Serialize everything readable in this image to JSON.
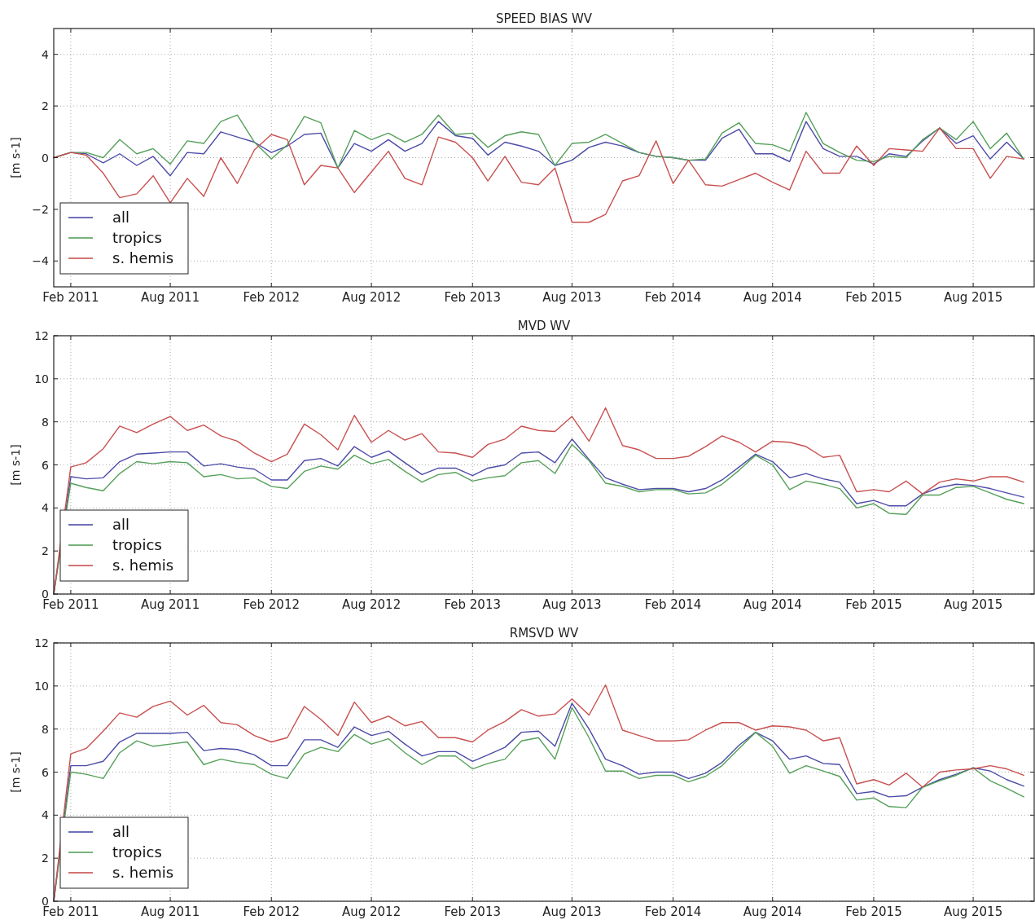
{
  "chart_data": [
    {
      "type": "line",
      "title": "SPEED BIAS WV",
      "ylabel": "[m s-1]",
      "grid": true,
      "legend": "bottom left",
      "line_style": "solid",
      "x": [
        "2011-01",
        "2011-02",
        "2011-03",
        "2011-04",
        "2011-05",
        "2011-06",
        "2011-07",
        "2011-08",
        "2011-09",
        "2011-10",
        "2011-11",
        "2011-12",
        "2012-01",
        "2012-02",
        "2012-03",
        "2012-04",
        "2012-05",
        "2012-06",
        "2012-07",
        "2012-08",
        "2012-09",
        "2012-10",
        "2012-11",
        "2012-12",
        "2013-01",
        "2013-02",
        "2013-03",
        "2013-04",
        "2013-05",
        "2013-06",
        "2013-07",
        "2013-08",
        "2013-09",
        "2013-10",
        "2013-11",
        "2013-12",
        "2014-01",
        "2014-02",
        "2014-03",
        "2014-04",
        "2014-05",
        "2014-06",
        "2014-07",
        "2014-08",
        "2014-09",
        "2014-10",
        "2014-11",
        "2014-12",
        "2015-01",
        "2015-02",
        "2015-03",
        "2015-04",
        "2015-05",
        "2015-06",
        "2015-07",
        "2015-08",
        "2015-09",
        "2015-10",
        "2015-11"
      ],
      "xlim": [
        "2011-01-01",
        "2015-11-20"
      ],
      "xticks": [
        {
          "value": "2011-02",
          "label": "Feb 2011"
        },
        {
          "value": "2011-08",
          "label": "Aug 2011"
        },
        {
          "value": "2012-02",
          "label": "Feb 2012"
        },
        {
          "value": "2012-08",
          "label": "Aug 2012"
        },
        {
          "value": "2013-02",
          "label": "Feb 2013"
        },
        {
          "value": "2013-08",
          "label": "Aug 2013"
        },
        {
          "value": "2014-02",
          "label": "Feb 2014"
        },
        {
          "value": "2014-08",
          "label": "Aug 2014"
        },
        {
          "value": "2015-02",
          "label": "Feb 2015"
        },
        {
          "value": "2015-08",
          "label": "Aug 2015"
        }
      ],
      "ylim": [
        -5,
        5
      ],
      "yticks": [
        {
          "value": -4,
          "label": "−4"
        },
        {
          "value": -2,
          "label": "−2"
        },
        0,
        2,
        4
      ],
      "series": [
        {
          "name": "all",
          "color": "#4c4ca8",
          "values": [
            0,
            0.2,
            0.15,
            -0.2,
            0.15,
            -0.3,
            0.05,
            -0.7,
            0.2,
            0.15,
            1.0,
            0.8,
            0.6,
            0.2,
            0.45,
            0.9,
            0.95,
            -0.4,
            0.55,
            0.25,
            0.7,
            0.25,
            0.55,
            1.4,
            0.85,
            0.75,
            0.1,
            0.6,
            0.45,
            0.25,
            -0.3,
            -0.1,
            0.4,
            0.6,
            0.45,
            0.2,
            0.05,
            0,
            -0.1,
            -0.1,
            0.75,
            1.1,
            0.15,
            0.15,
            -0.15,
            1.4,
            0.35,
            0.05,
            0.05,
            -0.25,
            0.15,
            0.05,
            0.65,
            1.15,
            0.55,
            0.85,
            -0.05,
            0.6,
            -0.05
          ]
        },
        {
          "name": "tropics",
          "color": "#55a05a",
          "values": [
            0,
            0.2,
            0.2,
            0,
            0.7,
            0.15,
            0.35,
            -0.25,
            0.65,
            0.55,
            1.4,
            1.65,
            0.6,
            -0.05,
            0.5,
            1.6,
            1.35,
            -0.4,
            1.05,
            0.7,
            0.95,
            0.6,
            0.9,
            1.65,
            0.9,
            0.95,
            0.4,
            0.85,
            1.0,
            0.9,
            -0.3,
            0.55,
            0.6,
            0.9,
            0.55,
            0.2,
            0.05,
            0,
            -0.1,
            -0.05,
            0.95,
            1.35,
            0.55,
            0.5,
            0.25,
            1.75,
            0.55,
            0.2,
            -0.1,
            -0.15,
            0.05,
            0,
            0.7,
            1.15,
            0.7,
            1.4,
            0.35,
            0.95,
            -0.05
          ]
        },
        {
          "name": "s. hemis",
          "color": "#c8504f",
          "values": [
            0,
            0.2,
            0.1,
            -0.6,
            -1.55,
            -1.4,
            -0.7,
            -1.75,
            -0.8,
            -1.5,
            0,
            -1.0,
            0.3,
            0.9,
            0.7,
            -1.05,
            -0.3,
            -0.4,
            -1.35,
            -0.55,
            0.25,
            -0.8,
            -1.05,
            0.8,
            0.6,
            0,
            -0.9,
            0.05,
            -0.95,
            -1.05,
            -0.4,
            -2.5,
            -2.5,
            -2.2,
            -0.9,
            -0.7,
            0.65,
            -1.0,
            -0.1,
            -1.05,
            -1.1,
            -0.85,
            -0.6,
            -0.95,
            -1.25,
            0.25,
            -0.6,
            -0.6,
            0.45,
            -0.3,
            0.35,
            0.3,
            0.25,
            1.15,
            0.35,
            0.35,
            -0.8,
            0.05,
            -0.05
          ]
        }
      ]
    },
    {
      "type": "line",
      "title": "MVD WV",
      "ylabel": "[m s-1]",
      "grid": true,
      "legend": "bottom left",
      "line_style": "solid",
      "x": [
        "2011-01",
        "2011-02",
        "2011-03",
        "2011-04",
        "2011-05",
        "2011-06",
        "2011-07",
        "2011-08",
        "2011-09",
        "2011-10",
        "2011-11",
        "2011-12",
        "2012-01",
        "2012-02",
        "2012-03",
        "2012-04",
        "2012-05",
        "2012-06",
        "2012-07",
        "2012-08",
        "2012-09",
        "2012-10",
        "2012-11",
        "2012-12",
        "2013-01",
        "2013-02",
        "2013-03",
        "2013-04",
        "2013-05",
        "2013-06",
        "2013-07",
        "2013-08",
        "2013-09",
        "2013-10",
        "2013-11",
        "2013-12",
        "2014-01",
        "2014-02",
        "2014-03",
        "2014-04",
        "2014-05",
        "2014-06",
        "2014-07",
        "2014-08",
        "2014-09",
        "2014-10",
        "2014-11",
        "2014-12",
        "2015-01",
        "2015-02",
        "2015-03",
        "2015-04",
        "2015-05",
        "2015-06",
        "2015-07",
        "2015-08",
        "2015-09",
        "2015-10",
        "2015-11"
      ],
      "xlim": [
        "2011-01-01",
        "2015-11-20"
      ],
      "xticks": [
        {
          "value": "2011-02",
          "label": "Feb 2011"
        },
        {
          "value": "2011-08",
          "label": "Aug 2011"
        },
        {
          "value": "2012-02",
          "label": "Feb 2012"
        },
        {
          "value": "2012-08",
          "label": "Aug 2012"
        },
        {
          "value": "2013-02",
          "label": "Feb 2013"
        },
        {
          "value": "2013-08",
          "label": "Aug 2013"
        },
        {
          "value": "2014-02",
          "label": "Feb 2014"
        },
        {
          "value": "2014-08",
          "label": "Aug 2014"
        },
        {
          "value": "2015-02",
          "label": "Feb 2015"
        },
        {
          "value": "2015-08",
          "label": "Aug 2015"
        }
      ],
      "ylim": [
        0,
        12
      ],
      "yticks": [
        0,
        2,
        4,
        6,
        8,
        10,
        12
      ],
      "series": [
        {
          "name": "all",
          "color": "#4c4ca8",
          "values": [
            0,
            5.45,
            5.35,
            5.4,
            6.15,
            6.5,
            6.55,
            6.6,
            6.6,
            5.95,
            6.05,
            5.9,
            5.8,
            5.3,
            5.3,
            6.2,
            6.3,
            5.95,
            6.85,
            6.35,
            6.65,
            6.1,
            5.55,
            5.85,
            5.85,
            5.5,
            5.85,
            6.0,
            6.55,
            6.6,
            6.1,
            7.2,
            6.25,
            5.4,
            5.1,
            4.85,
            4.9,
            4.9,
            4.75,
            4.9,
            5.3,
            5.9,
            6.5,
            6.15,
            5.4,
            5.6,
            5.35,
            5.2,
            4.2,
            4.35,
            4.1,
            4.1,
            4.65,
            4.95,
            5.1,
            5.05,
            4.9,
            4.7,
            4.5
          ]
        },
        {
          "name": "tropics",
          "color": "#55a05a",
          "values": [
            0,
            5.15,
            4.95,
            4.8,
            5.6,
            6.15,
            6.05,
            6.15,
            6.1,
            5.45,
            5.55,
            5.35,
            5.4,
            5.0,
            4.9,
            5.7,
            5.95,
            5.8,
            6.45,
            6.05,
            6.25,
            5.7,
            5.2,
            5.55,
            5.65,
            5.25,
            5.4,
            5.5,
            6.1,
            6.2,
            5.6,
            6.95,
            6.2,
            5.15,
            5.0,
            4.75,
            4.85,
            4.85,
            4.65,
            4.7,
            5.1,
            5.75,
            6.45,
            6.0,
            4.85,
            5.25,
            5.1,
            4.9,
            4.0,
            4.2,
            3.75,
            3.7,
            4.6,
            4.6,
            4.95,
            5.0,
            4.7,
            4.4,
            4.2
          ]
        },
        {
          "name": "s. hemis",
          "color": "#c8504f",
          "values": [
            0,
            5.9,
            6.1,
            6.75,
            7.8,
            7.5,
            7.9,
            8.25,
            7.6,
            7.85,
            7.35,
            7.1,
            6.55,
            6.15,
            6.5,
            7.9,
            7.4,
            6.7,
            8.3,
            7.05,
            7.6,
            7.15,
            7.45,
            6.6,
            6.55,
            6.35,
            6.95,
            7.2,
            7.8,
            7.6,
            7.55,
            8.25,
            7.1,
            8.65,
            6.9,
            6.7,
            6.3,
            6.3,
            6.4,
            6.85,
            7.35,
            7.05,
            6.6,
            7.1,
            7.05,
            6.85,
            6.35,
            6.45,
            4.75,
            4.85,
            4.75,
            5.25,
            4.65,
            5.2,
            5.35,
            5.25,
            5.45,
            5.45,
            5.2
          ]
        }
      ]
    },
    {
      "type": "line",
      "title": "RMSVD WV",
      "ylabel": "[m s-1]",
      "grid": true,
      "legend": "bottom left",
      "line_style": "solid",
      "x": [
        "2011-01",
        "2011-02",
        "2011-03",
        "2011-04",
        "2011-05",
        "2011-06",
        "2011-07",
        "2011-08",
        "2011-09",
        "2011-10",
        "2011-11",
        "2011-12",
        "2012-01",
        "2012-02",
        "2012-03",
        "2012-04",
        "2012-05",
        "2012-06",
        "2012-07",
        "2012-08",
        "2012-09",
        "2012-10",
        "2012-11",
        "2012-12",
        "2013-01",
        "2013-02",
        "2013-03",
        "2013-04",
        "2013-05",
        "2013-06",
        "2013-07",
        "2013-08",
        "2013-09",
        "2013-10",
        "2013-11",
        "2013-12",
        "2014-01",
        "2014-02",
        "2014-03",
        "2014-04",
        "2014-05",
        "2014-06",
        "2014-07",
        "2014-08",
        "2014-09",
        "2014-10",
        "2014-11",
        "2014-12",
        "2015-01",
        "2015-02",
        "2015-03",
        "2015-04",
        "2015-05",
        "2015-06",
        "2015-07",
        "2015-08",
        "2015-09",
        "2015-10",
        "2015-11"
      ],
      "xlim": [
        "2011-01-01",
        "2015-11-20"
      ],
      "xticks": [
        {
          "value": "2011-02",
          "label": "Feb 2011"
        },
        {
          "value": "2011-08",
          "label": "Aug 2011"
        },
        {
          "value": "2012-02",
          "label": "Feb 2012"
        },
        {
          "value": "2012-08",
          "label": "Aug 2012"
        },
        {
          "value": "2013-02",
          "label": "Feb 2013"
        },
        {
          "value": "2013-08",
          "label": "Aug 2013"
        },
        {
          "value": "2014-02",
          "label": "Feb 2014"
        },
        {
          "value": "2014-08",
          "label": "Aug 2014"
        },
        {
          "value": "2015-02",
          "label": "Feb 2015"
        },
        {
          "value": "2015-08",
          "label": "Aug 2015"
        }
      ],
      "ylim": [
        0,
        12
      ],
      "yticks": [
        0,
        2,
        4,
        6,
        8,
        10,
        12
      ],
      "series": [
        {
          "name": "all",
          "color": "#4c4ca8",
          "values": [
            0,
            6.3,
            6.3,
            6.5,
            7.4,
            7.8,
            7.8,
            7.8,
            7.85,
            7.0,
            7.1,
            7.05,
            6.8,
            6.3,
            6.3,
            7.5,
            7.5,
            7.15,
            8.1,
            7.7,
            7.9,
            7.3,
            6.75,
            6.95,
            6.95,
            6.5,
            6.8,
            7.15,
            7.85,
            7.9,
            7.2,
            9.2,
            8.0,
            6.6,
            6.3,
            5.9,
            6.0,
            6.0,
            5.7,
            5.95,
            6.45,
            7.25,
            7.85,
            7.45,
            6.6,
            6.75,
            6.4,
            6.35,
            5.0,
            5.1,
            4.85,
            4.9,
            5.3,
            5.65,
            5.9,
            6.2,
            6.05,
            5.65,
            5.35
          ]
        },
        {
          "name": "tropics",
          "color": "#55a05a",
          "values": [
            0,
            6.0,
            5.9,
            5.7,
            6.9,
            7.45,
            7.2,
            7.3,
            7.4,
            6.35,
            6.6,
            6.45,
            6.35,
            5.9,
            5.7,
            6.85,
            7.15,
            6.95,
            7.75,
            7.3,
            7.55,
            6.9,
            6.35,
            6.75,
            6.75,
            6.15,
            6.4,
            6.6,
            7.45,
            7.6,
            6.6,
            9.0,
            7.6,
            6.05,
            6.05,
            5.7,
            5.85,
            5.85,
            5.55,
            5.8,
            6.3,
            7.1,
            7.85,
            7.2,
            5.95,
            6.3,
            6.05,
            5.8,
            4.7,
            4.8,
            4.4,
            4.35,
            5.3,
            5.6,
            5.85,
            6.2,
            5.6,
            5.25,
            4.85
          ]
        },
        {
          "name": "s. hemis",
          "color": "#c8504f",
          "values": [
            0,
            6.85,
            7.1,
            7.9,
            8.75,
            8.55,
            9.05,
            9.3,
            8.65,
            9.1,
            8.3,
            8.2,
            7.7,
            7.4,
            7.6,
            9.05,
            8.45,
            7.7,
            9.25,
            8.3,
            8.6,
            8.15,
            8.35,
            7.6,
            7.6,
            7.4,
            7.95,
            8.35,
            8.9,
            8.6,
            8.7,
            9.4,
            8.65,
            10.05,
            7.95,
            7.7,
            7.45,
            7.45,
            7.5,
            7.95,
            8.3,
            8.3,
            7.95,
            8.15,
            8.1,
            7.95,
            7.45,
            7.6,
            5.45,
            5.65,
            5.4,
            5.95,
            5.3,
            6.0,
            6.1,
            6.15,
            6.3,
            6.15,
            5.85
          ]
        }
      ]
    }
  ]
}
